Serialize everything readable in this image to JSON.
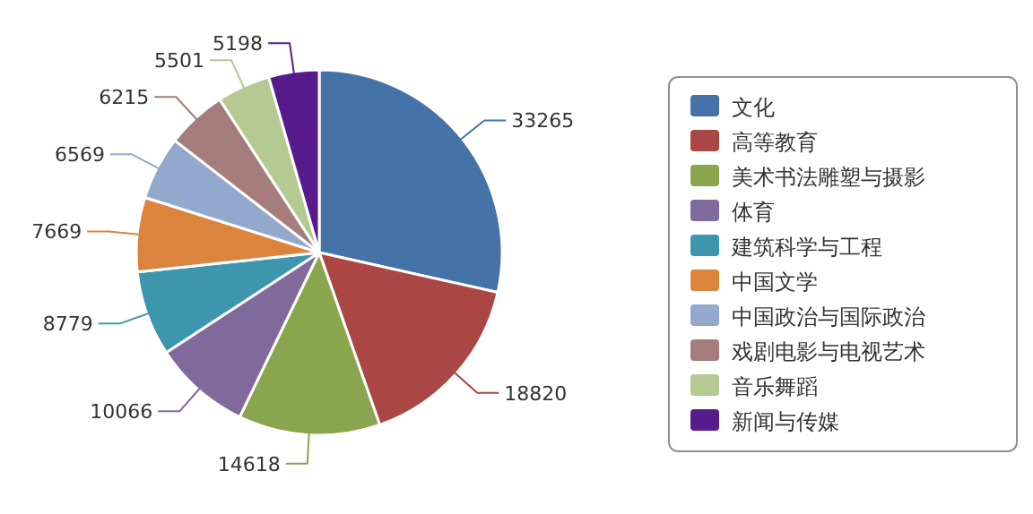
{
  "chart_data": {
    "type": "pie",
    "categories": [
      "文化",
      "高等教育",
      "美术书法雕塑与摄影",
      "体育",
      "建筑科学与工程",
      "中国文学",
      "中国政治与国际政治",
      "戏剧电影与电视艺术",
      "音乐舞蹈",
      "新闻与传媒"
    ],
    "values": [
      33265,
      18820,
      14618,
      10066,
      8779,
      7669,
      6569,
      6215,
      5501,
      5198
    ],
    "colors": [
      "#4572a7",
      "#aa4643",
      "#89a54e",
      "#80699b",
      "#3d96ae",
      "#db843d",
      "#92a8cd",
      "#a47d7c",
      "#b5ca92",
      "#571b8c"
    ],
    "data_labels": true,
    "legend": "right"
  }
}
